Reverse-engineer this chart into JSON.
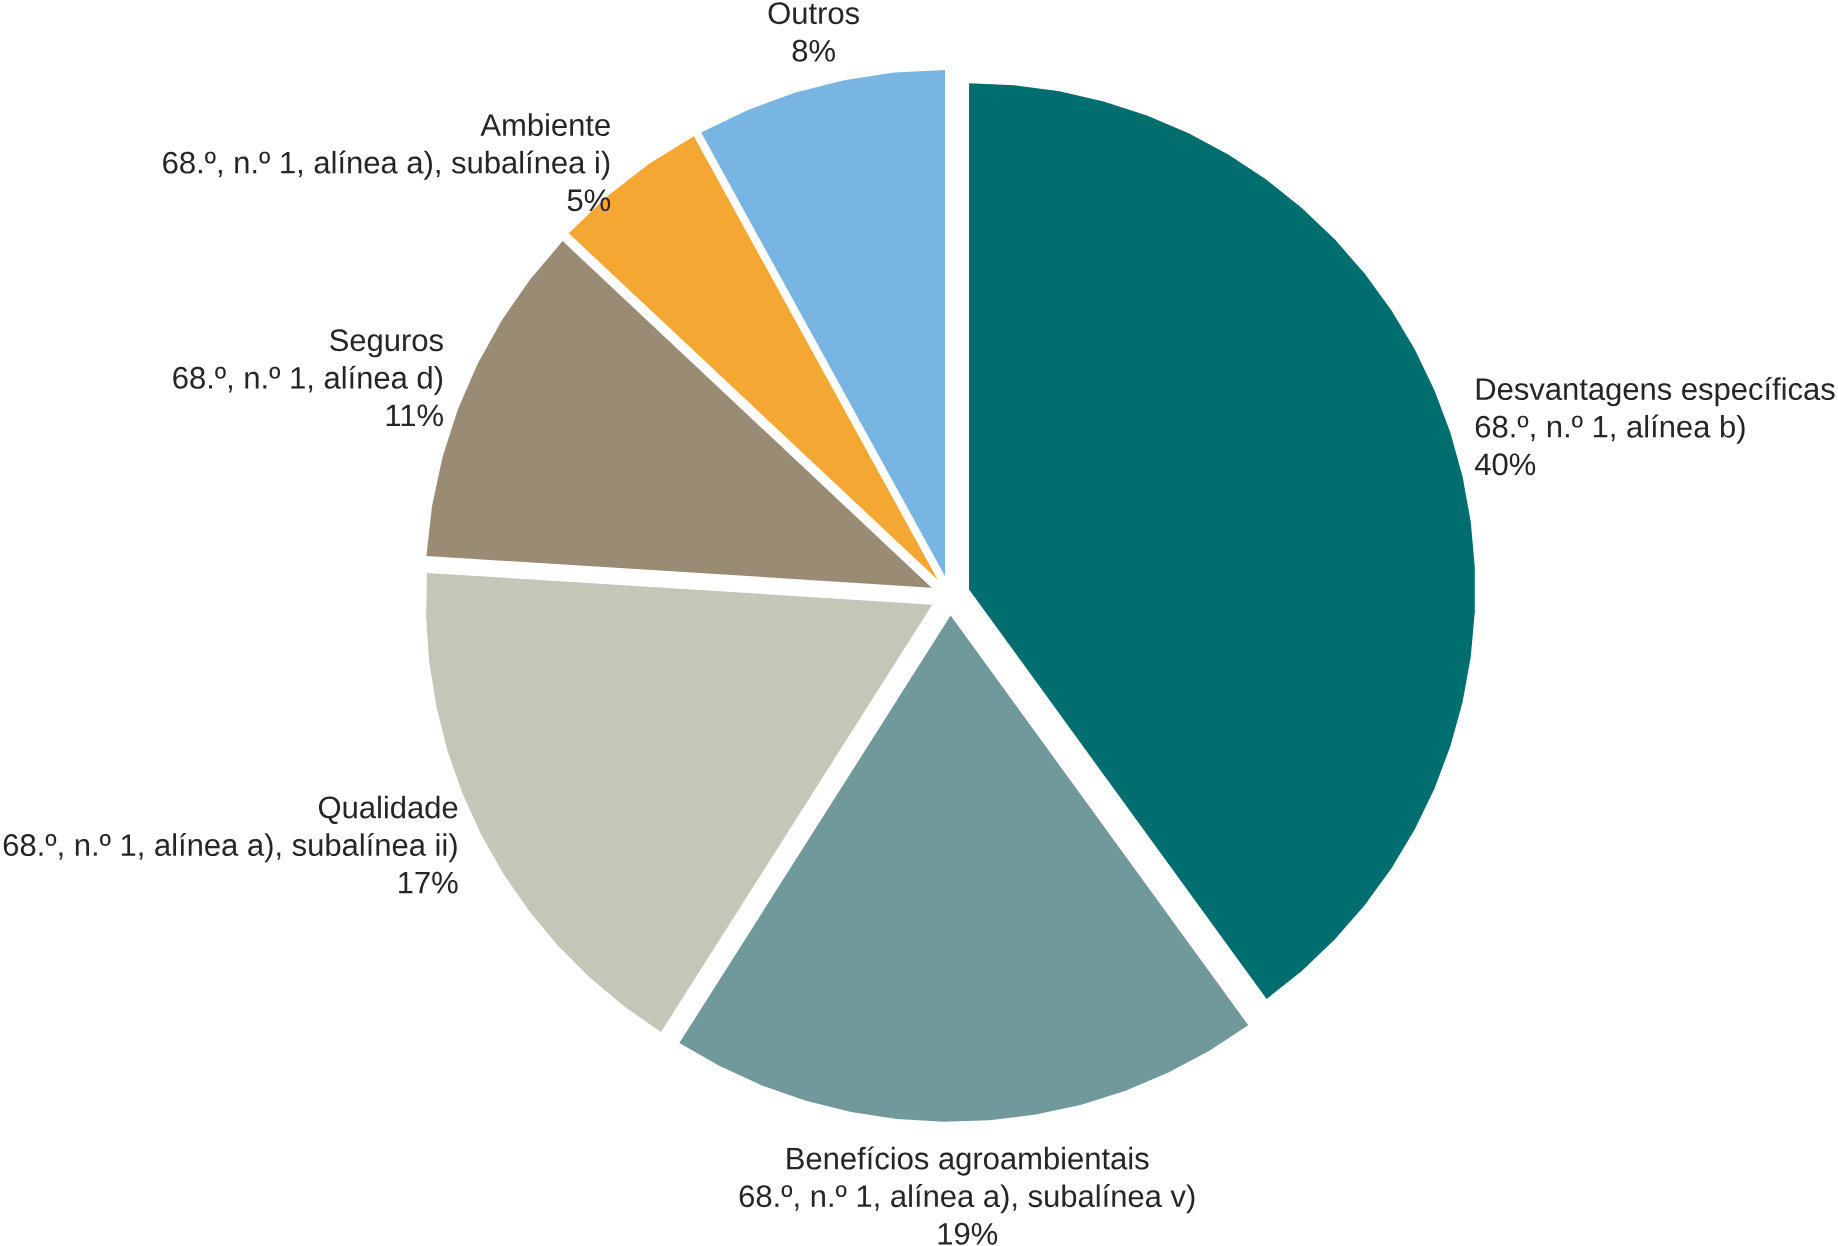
{
  "chart_data": {
    "type": "pie",
    "categories": [
      "Desvantagens específicas",
      "Benefícios agroambientais",
      "Qualidade",
      "Seguros",
      "Ambiente",
      "Outros"
    ],
    "values": [
      40,
      19,
      17,
      11,
      5,
      8
    ],
    "value_labels": [
      "40%",
      "19%",
      "17%",
      "11%",
      "5%",
      "8%"
    ],
    "colors": [
      "#006e6e",
      "#71999b",
      "#c5c6b8",
      "#9a8c74",
      "#f5a733",
      "#79b5e3"
    ],
    "annotations": [
      "68.º, n.º 1, alínea b)",
      "68.º, n.º 1, alínea a), subalínea v)",
      "68.º, n.º 1, alínea a), subalínea ii)",
      "68.º, n.º 1, alínea d)",
      "68.º, n.º 1, alínea a), subalínea i)"
    ]
  }
}
